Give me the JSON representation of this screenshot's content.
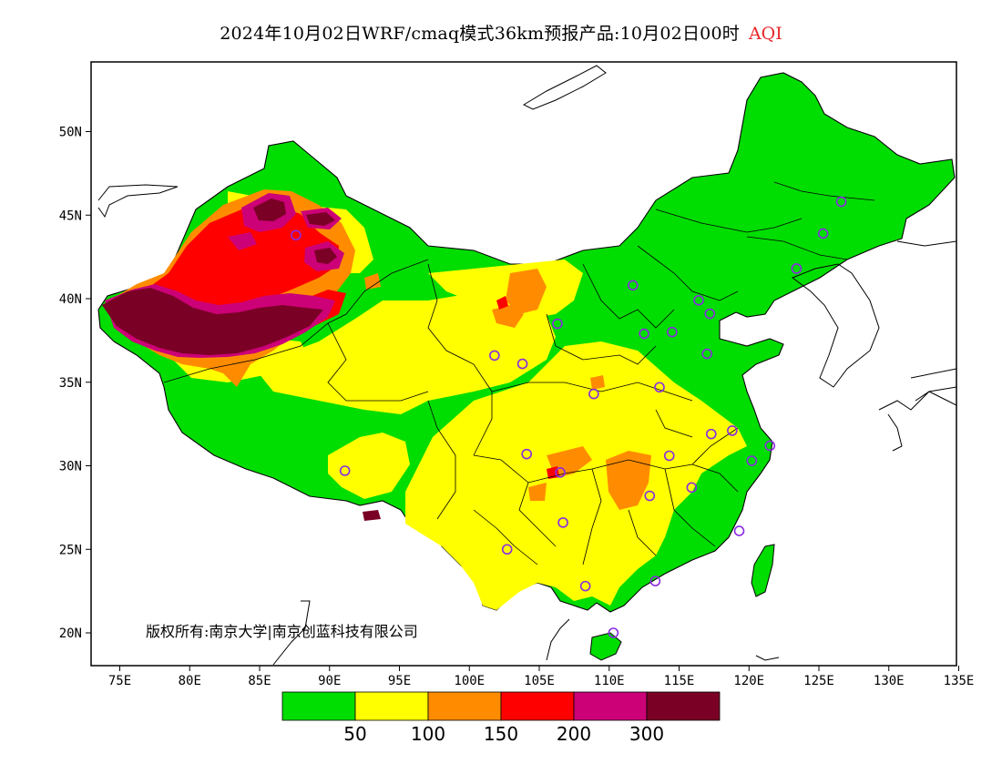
{
  "title": {
    "text": "2024年10月02日WRF/cmaq模式36km预报产品:10月02日00时",
    "variable": "AQI",
    "variable_color": "#e8262a"
  },
  "axes": {
    "lat_ticks": [
      "50N",
      "45N",
      "40N",
      "35N",
      "30N",
      "25N",
      "20N"
    ],
    "lon_ticks": [
      "75E",
      "80E",
      "85E",
      "90E",
      "95E",
      "100E",
      "105E",
      "110E",
      "115E",
      "120E",
      "125E",
      "130E",
      "135E"
    ],
    "lat_range": [
      18,
      54
    ],
    "lon_range": [
      73,
      135
    ]
  },
  "copyright": "版权所有:南京大学|南京创蓝科技有限公司",
  "legend": {
    "colors": [
      "#00dd00",
      "#ffff00",
      "#ff8c00",
      "#ff0000",
      "#cc0077",
      "#7a0025"
    ],
    "labels": [
      "50",
      "100",
      "150",
      "200",
      "300"
    ]
  },
  "palette": {
    "good": "#00dd00",
    "moderate": "#ffff00",
    "usg": "#ff8c00",
    "unhealthy": "#ff0000",
    "very_unhealthy": "#cc0077",
    "hazardous": "#7a0025"
  },
  "stations": [
    {
      "lon": 87.6,
      "lat": 43.8
    },
    {
      "lon": 91.1,
      "lat": 29.7
    },
    {
      "lon": 101.8,
      "lat": 36.6
    },
    {
      "lon": 103.8,
      "lat": 36.1
    },
    {
      "lon": 106.3,
      "lat": 38.5
    },
    {
      "lon": 104.1,
      "lat": 30.7
    },
    {
      "lon": 106.5,
      "lat": 29.6
    },
    {
      "lon": 106.7,
      "lat": 26.6
    },
    {
      "lon": 102.7,
      "lat": 25.0
    },
    {
      "lon": 108.9,
      "lat": 34.3
    },
    {
      "lon": 111.7,
      "lat": 40.8
    },
    {
      "lon": 112.5,
      "lat": 37.9
    },
    {
      "lon": 114.5,
      "lat": 38.0
    },
    {
      "lon": 116.4,
      "lat": 39.9
    },
    {
      "lon": 117.2,
      "lat": 39.1
    },
    {
      "lon": 117.0,
      "lat": 36.7
    },
    {
      "lon": 113.6,
      "lat": 34.7
    },
    {
      "lon": 117.3,
      "lat": 31.9
    },
    {
      "lon": 118.8,
      "lat": 32.1
    },
    {
      "lon": 121.5,
      "lat": 31.2
    },
    {
      "lon": 120.2,
      "lat": 30.3
    },
    {
      "lon": 114.3,
      "lat": 30.6
    },
    {
      "lon": 112.9,
      "lat": 28.2
    },
    {
      "lon": 115.9,
      "lat": 28.7
    },
    {
      "lon": 119.3,
      "lat": 26.1
    },
    {
      "lon": 113.3,
      "lat": 23.1
    },
    {
      "lon": 108.3,
      "lat": 22.8
    },
    {
      "lon": 110.3,
      "lat": 20.0
    },
    {
      "lon": 123.4,
      "lat": 41.8
    },
    {
      "lon": 125.3,
      "lat": 43.9
    },
    {
      "lon": 126.6,
      "lat": 45.8
    }
  ]
}
